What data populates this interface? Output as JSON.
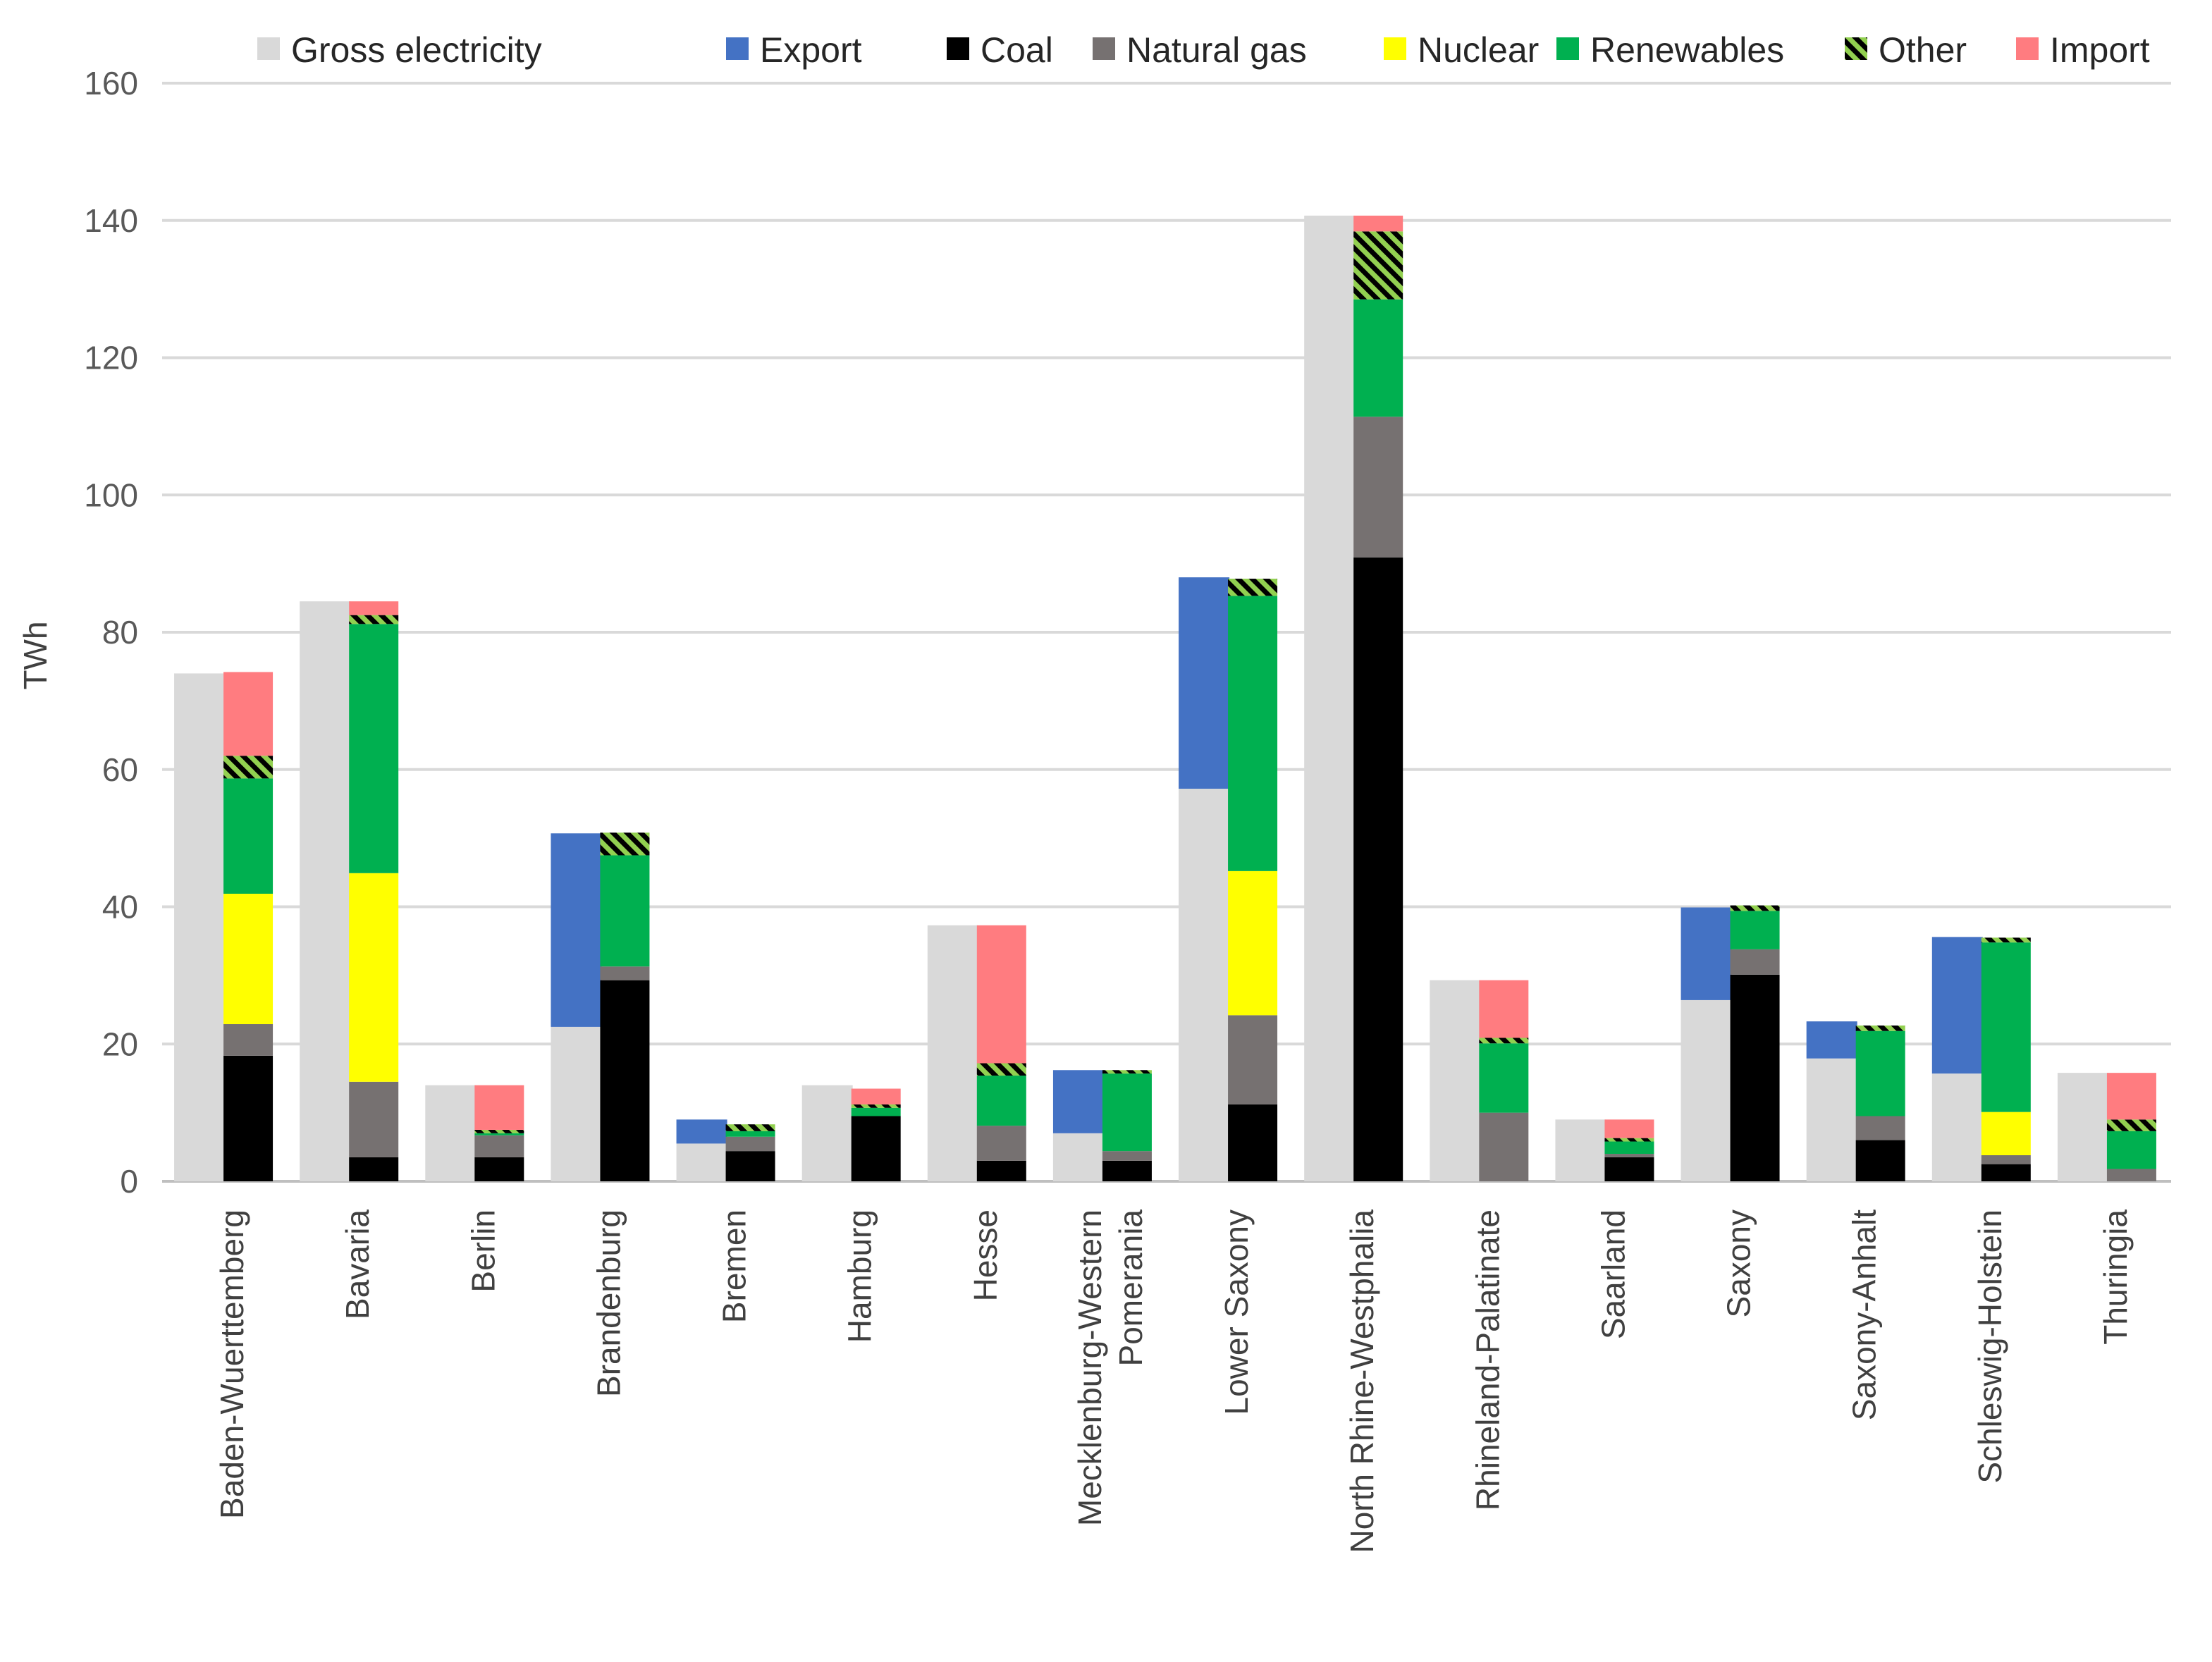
{
  "chart_data": {
    "type": "bar",
    "title": "",
    "xlabel": "",
    "ylabel": "TWh",
    "ylim": [
      0,
      160
    ],
    "yticks": [
      0,
      20,
      40,
      60,
      80,
      100,
      120,
      140,
      160
    ],
    "grid": true,
    "legend_position": "top",
    "legend": [
      "Gross electricity",
      "Export",
      "Coal",
      "Natural gas",
      "Nuclear",
      "Renewables",
      "Other",
      "Import"
    ],
    "colors": {
      "Gross electricity": "#d9d9d9",
      "Export": "#4472c4",
      "Coal": "#000000",
      "Natural gas": "#767171",
      "Nuclear": "#ffff00",
      "Renewables": "#00b050",
      "Other": "hatched #92d050 / #000000",
      "Import": "#ff7c80"
    },
    "categories": [
      "Baden-Wuerttemberg",
      "Bavaria",
      "Berlin",
      "Brandenburg",
      "Bremen",
      "Hamburg",
      "Hesse",
      "Mecklenburg-Western Pomerania",
      "Lower Saxony",
      "North Rhine-Westphalia",
      "Rhineland-Palatinate",
      "Saarland",
      "Saxony",
      "Saxony-Anhalt",
      "Schleswig-Holstein",
      "Thuringia"
    ],
    "category_lines": [
      [
        "Baden-Wuerttemberg"
      ],
      [
        "Bavaria"
      ],
      [
        "Berlin"
      ],
      [
        "Brandenburg"
      ],
      [
        "Bremen"
      ],
      [
        "Hamburg"
      ],
      [
        "Hesse"
      ],
      [
        "Mecklenburg-Western",
        "Pomerania"
      ],
      [
        "Lower Saxony"
      ],
      [
        "North Rhine-Westphalia"
      ],
      [
        "Rhineland-Palatinate"
      ],
      [
        "Saarland"
      ],
      [
        "Saxony"
      ],
      [
        "Saxony-Anhalt"
      ],
      [
        "Schleswig-Holstein"
      ],
      [
        "Thuringia"
      ]
    ],
    "gross_series": [
      {
        "name": "Gross electricity",
        "values": [
          74,
          84.5,
          14,
          22.5,
          5.5,
          14,
          37.3,
          7,
          57.2,
          140.7,
          29.3,
          9,
          26.4,
          17.9,
          15.7,
          15.8
        ]
      },
      {
        "name": "Export",
        "values": [
          0,
          0,
          0,
          28.2,
          3.5,
          0,
          0,
          9.2,
          30.8,
          0,
          0,
          0,
          13.5,
          5.4,
          19.9,
          0
        ]
      }
    ],
    "generation_series": [
      {
        "name": "Coal",
        "values": [
          18.3,
          3.5,
          3.5,
          29.3,
          4.4,
          9.5,
          3,
          3,
          11.2,
          90.9,
          0,
          3.5,
          30.1,
          6,
          2.5,
          0
        ]
      },
      {
        "name": "Natural gas",
        "values": [
          4.6,
          11,
          3.2,
          2,
          2.1,
          0,
          5.1,
          1.4,
          13,
          20.5,
          10,
          0.5,
          3.7,
          3.5,
          1.3,
          1.8
        ]
      },
      {
        "name": "Nuclear",
        "values": [
          19,
          30.4,
          0,
          0,
          0,
          0,
          0,
          0,
          21,
          0,
          0,
          0,
          0,
          0,
          6.3,
          0
        ]
      },
      {
        "name": "Renewables",
        "values": [
          16.8,
          36.3,
          0.3,
          16.2,
          0.8,
          1.2,
          7.3,
          11.3,
          40.1,
          17.1,
          10.1,
          1.8,
          5.6,
          12.4,
          24.7,
          5.5
        ]
      },
      {
        "name": "Other",
        "values": [
          3.3,
          1.3,
          0.5,
          3.3,
          1,
          0.5,
          1.8,
          0.5,
          2.5,
          9.9,
          0.8,
          0.5,
          0.8,
          0.8,
          0.7,
          1.7
        ]
      },
      {
        "name": "Import",
        "values": [
          12.2,
          2,
          6.5,
          0,
          0,
          2.3,
          20.1,
          0,
          0,
          2.3,
          8.4,
          2.7,
          0,
          0,
          0,
          6.8
        ]
      }
    ]
  }
}
